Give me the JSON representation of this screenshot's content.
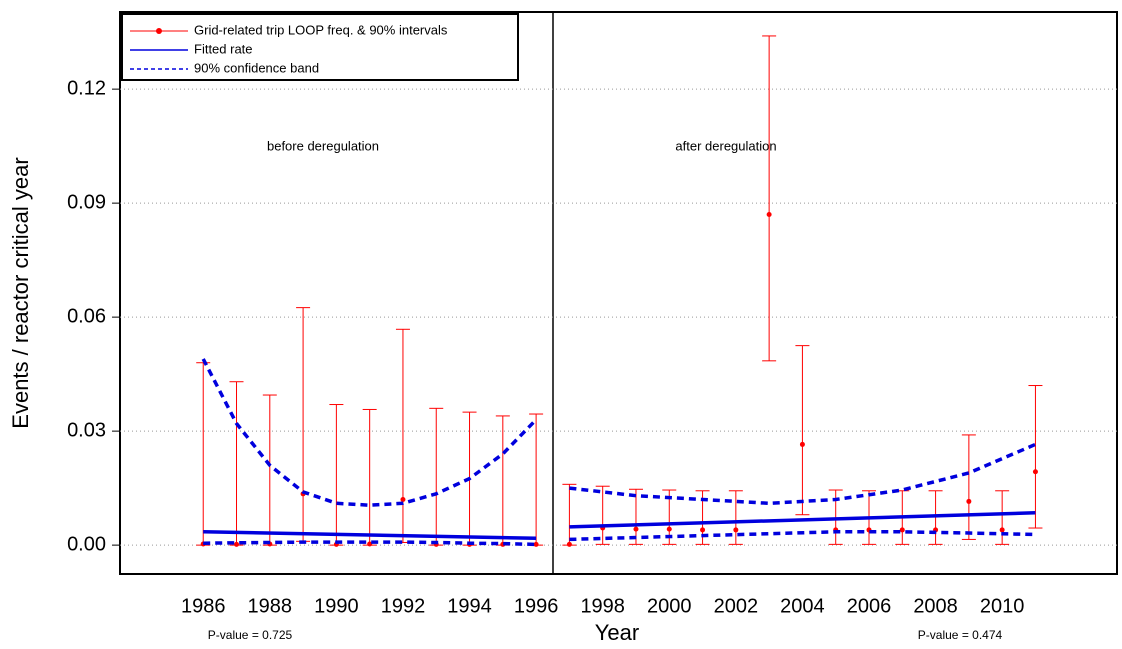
{
  "chart_data": {
    "type": "errorbar",
    "xlabel": "Year",
    "ylabel": "Events / reactor critical year",
    "xlim": [
      1983.5,
      2013.45
    ],
    "ylim": [
      -0.0076,
      0.1403
    ],
    "xticks": [
      1986,
      1988,
      1990,
      1992,
      1994,
      1996,
      1998,
      2000,
      2002,
      2004,
      2006,
      2008,
      2010
    ],
    "yticks": [
      {
        "value": 0,
        "label": "0.00"
      },
      0.03,
      0.06,
      0.09,
      0.12
    ],
    "grid": true,
    "legend": "upper left",
    "annotations": [
      "before deregulation",
      "after deregulation",
      "P-value = 0.725",
      "P-value = 0.474"
    ],
    "series": [
      {
        "name": "Grid-related trip LOOP freq. & 90% intervals",
        "color": "#ff0000",
        "x": [
          1986,
          1987,
          1988,
          1989,
          1990,
          1991,
          1992,
          1993,
          1994,
          1995,
          1996,
          1997,
          1998,
          1999,
          2000,
          2001,
          2002,
          2003,
          2004,
          2005,
          2006,
          2007,
          2008,
          2009,
          2010,
          2011
        ],
        "values": [
          0.0003,
          0.0002,
          0.0003,
          0.0135,
          0.0002,
          0.0003,
          0.012,
          0.0002,
          0.0002,
          0.0002,
          0.0002,
          0.0002,
          0.0045,
          0.0042,
          0.0042,
          0.004,
          0.004,
          0.087,
          0.0265,
          0.004,
          0.004,
          0.004,
          0.004,
          0.0115,
          0.004,
          0.0193
        ],
        "lower": [
          0,
          0,
          0,
          0.001,
          0,
          0,
          0.0007,
          0,
          0,
          0,
          0,
          0,
          0.0002,
          0.0002,
          0.0002,
          0.0002,
          0.0002,
          0.0485,
          0.008,
          0.0002,
          0.0002,
          0.0002,
          0.0002,
          0.0015,
          0.0002,
          0.0045
        ],
        "upper": [
          0.048,
          0.043,
          0.0395,
          0.0625,
          0.037,
          0.0357,
          0.0568,
          0.036,
          0.035,
          0.034,
          0.0345,
          0.016,
          0.0155,
          0.0147,
          0.0145,
          0.0143,
          0.0143,
          0.134,
          0.0525,
          0.0145,
          0.0143,
          0.0143,
          0.0143,
          0.029,
          0.0143,
          0.042
        ]
      },
      {
        "name": "Fitted rate",
        "color": "#0000dd",
        "segments": [
          {
            "x": [
              1986,
              1996
            ],
            "values": [
              0.0035,
              0.0018
            ]
          },
          {
            "x": [
              1997,
              2011
            ],
            "values": [
              0.0048,
              0.0085
            ]
          }
        ]
      },
      {
        "name": "90% confidence band",
        "color": "#0000dd",
        "segments": [
          {
            "x": [
              1986,
              1987,
              1988,
              1989,
              1990,
              1991,
              1992,
              1993,
              1994,
              1995,
              1996
            ],
            "upper": [
              0.049,
              0.032,
              0.021,
              0.014,
              0.011,
              0.0105,
              0.011,
              0.0135,
              0.0175,
              0.024,
              0.033
            ],
            "lower": [
              0.0005,
              0.0006,
              0.0007,
              0.0008,
              0.0008,
              0.0008,
              0.0008,
              0.0007,
              0.0005,
              0.0004,
              0.0002
            ]
          },
          {
            "x": [
              1997,
              1999,
              2001,
              2003,
              2005,
              2007,
              2009,
              2011
            ],
            "upper": [
              0.015,
              0.013,
              0.012,
              0.011,
              0.012,
              0.0145,
              0.019,
              0.0265
            ],
            "lower": [
              0.0015,
              0.002,
              0.0025,
              0.003,
              0.0035,
              0.0035,
              0.0032,
              0.0028
            ]
          }
        ]
      }
    ]
  }
}
